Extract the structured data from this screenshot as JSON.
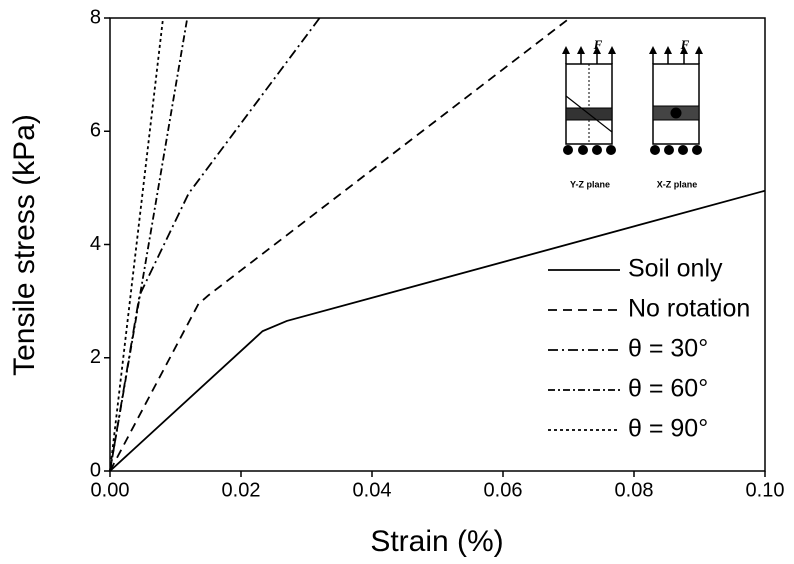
{
  "chart_data": {
    "type": "line",
    "x_label": "Strain (%)",
    "y_label": "Tensile stress (kPa)",
    "xlim": [
      0,
      0.1
    ],
    "ylim": [
      0,
      8
    ],
    "xticks": [
      {
        "value": 0,
        "label": "0.00"
      },
      {
        "value": 0.02,
        "label": "0.02"
      },
      {
        "value": 0.04,
        "label": "0.04"
      },
      {
        "value": 0.06,
        "label": "0.06"
      },
      {
        "value": 0.08,
        "label": "0.08"
      },
      {
        "value": 0.1,
        "label": "0.10"
      }
    ],
    "yticks": [
      0,
      2,
      4,
      6,
      8
    ],
    "grid": false,
    "legend": "lower right",
    "series": [
      {
        "name": "Soil only",
        "color": "#000000",
        "linestyle": "solid",
        "x": [
          0,
          0.0233,
          0.027,
          0.1
        ],
        "values": [
          0,
          2.47,
          2.65,
          4.95
        ]
      },
      {
        "name": "No rotation",
        "color": "#000000",
        "linestyle": "dashed",
        "x": [
          0,
          0.0135,
          0.015,
          0.0702
        ],
        "values": [
          0,
          2.95,
          3.1,
          8
        ]
      },
      {
        "name": "θ = 30°",
        "color": "#000000",
        "linestyle": "dashdot",
        "x": [
          0,
          0.0045,
          0.012,
          0.032
        ],
        "values": [
          0,
          3.1,
          4.9,
          8
        ]
      },
      {
        "name": "θ = 60°",
        "color": "#000000",
        "linestyle": "dashdotdense",
        "x": [
          0,
          0.0118
        ],
        "values": [
          0,
          8
        ]
      },
      {
        "name": "θ = 90°",
        "color": "#000000",
        "linestyle": "dotted",
        "x": [
          0,
          0.0081
        ],
        "values": [
          0,
          8
        ]
      }
    ],
    "inset_labels": [
      "F",
      "F",
      "Y-Z plane",
      "X-Z plane"
    ]
  }
}
